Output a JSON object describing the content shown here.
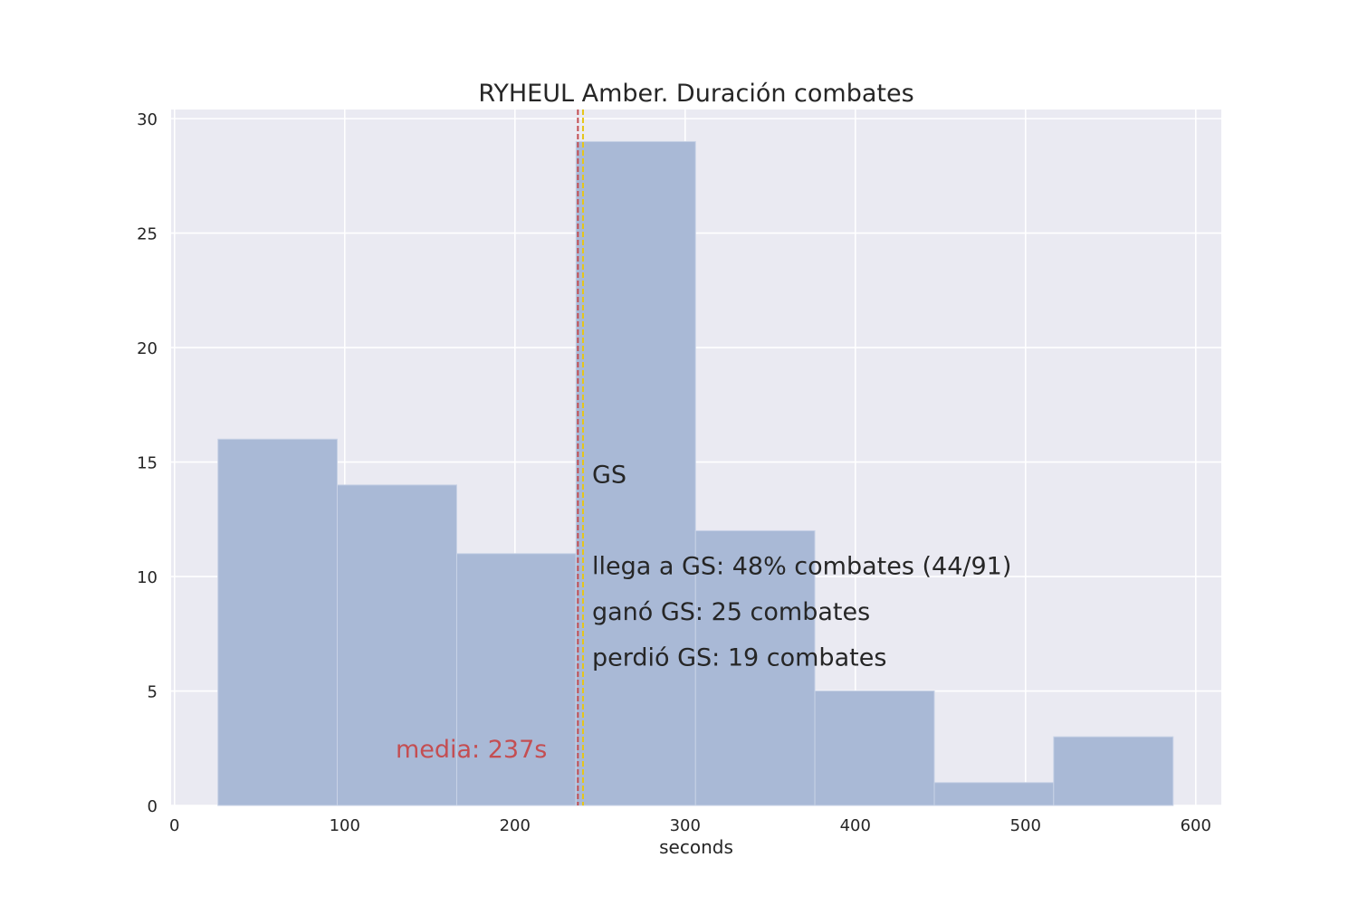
{
  "chart_data": {
    "type": "bar",
    "title": "RYHEUL Amber. Duración combates",
    "xlabel": "seconds",
    "ylabel": "",
    "xlim": [
      -2,
      615
    ],
    "ylim": [
      0,
      30.4
    ],
    "grid": true,
    "x_ticks": [
      0,
      100,
      200,
      300,
      400,
      500,
      600
    ],
    "y_ticks": [
      0,
      5,
      10,
      15,
      20,
      25,
      30
    ],
    "bins": [
      {
        "start": 25.5,
        "end": 95.6,
        "count": 16
      },
      {
        "start": 95.6,
        "end": 165.8,
        "count": 14
      },
      {
        "start": 165.8,
        "end": 235.9,
        "count": 11
      },
      {
        "start": 235.9,
        "end": 306.1,
        "count": 29
      },
      {
        "start": 306.1,
        "end": 376.2,
        "count": 12
      },
      {
        "start": 376.2,
        "end": 446.4,
        "count": 5
      },
      {
        "start": 446.4,
        "end": 516.5,
        "count": 1
      },
      {
        "start": 516.5,
        "end": 586.7,
        "count": 3
      }
    ],
    "vlines": [
      {
        "name": "media",
        "x": 237,
        "color": "#c44e52"
      },
      {
        "name": "GS",
        "x": 240,
        "color": "#e6c619"
      }
    ],
    "annotations": {
      "gs_label": "GS",
      "reach_gs": "llega a GS: 48% combates (44/91)",
      "won_gs": "ganó GS: 25 combates",
      "lost_gs": "perdió GS: 19 combates",
      "mean_label": "media: 237s"
    },
    "colors": {
      "bar": "#a9b9d6",
      "background": "#eaeaf2",
      "grid": "#ffffff",
      "mean_line": "#c44e52",
      "gs_line": "#e6c619"
    }
  }
}
